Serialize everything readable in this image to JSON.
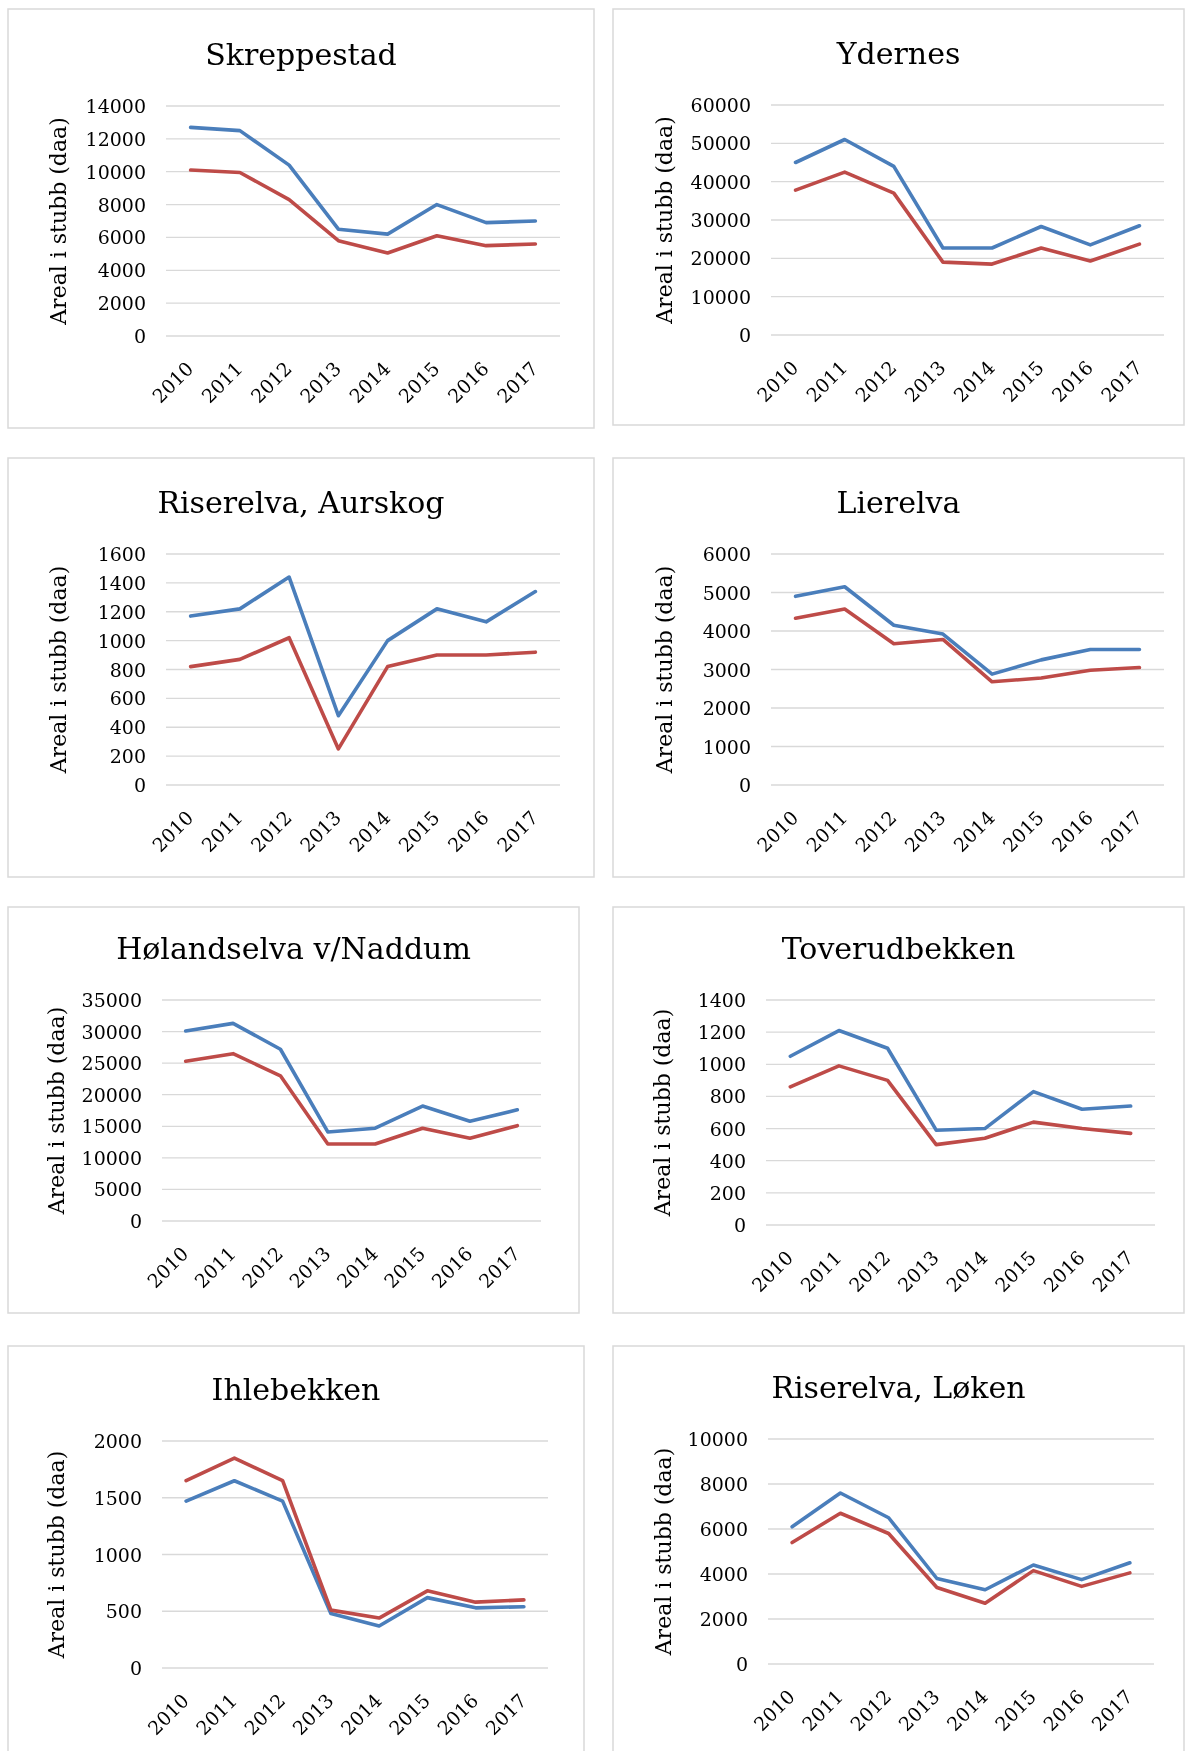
{
  "chart_data": [
    {
      "type": "line",
      "title": "Skreppestad",
      "ylabel": "Areal i stubb (daa)",
      "categories": [
        "2010",
        "2011",
        "2012",
        "2013",
        "2014",
        "2015",
        "2016",
        "2017"
      ],
      "series": [
        {
          "color": "#4a7ebb",
          "values": [
            12700,
            12500,
            10400,
            6500,
            6200,
            8000,
            6900,
            7000
          ]
        },
        {
          "color": "#be4b48",
          "values": [
            10100,
            9950,
            8300,
            5800,
            5050,
            6100,
            5500,
            5600
          ]
        }
      ],
      "ylim": [
        0,
        14000
      ],
      "yticks": [
        0,
        2000,
        4000,
        6000,
        8000,
        10000,
        12000,
        14000
      ],
      "grid": "y"
    },
    {
      "type": "line",
      "title": "Ydernes",
      "ylabel": "Areal i stubb (daa)",
      "categories": [
        "2010",
        "2011",
        "2012",
        "2013",
        "2014",
        "2015",
        "2016",
        "2017"
      ],
      "series": [
        {
          "color": "#4a7ebb",
          "values": [
            45000,
            51000,
            44000,
            22700,
            22700,
            28300,
            23500,
            28500
          ]
        },
        {
          "color": "#be4b48",
          "values": [
            37800,
            42500,
            37000,
            19000,
            18500,
            22700,
            19300,
            23700
          ]
        }
      ],
      "ylim": [
        0,
        60000
      ],
      "yticks": [
        0,
        10000,
        20000,
        30000,
        40000,
        50000,
        60000
      ],
      "grid": "y"
    },
    {
      "type": "line",
      "title": "Riserelva, Aurskog",
      "ylabel": "Areal i stubb (daa)",
      "categories": [
        "2010",
        "2011",
        "2012",
        "2013",
        "2014",
        "2015",
        "2016",
        "2017"
      ],
      "series": [
        {
          "color": "#4a7ebb",
          "values": [
            1170,
            1220,
            1440,
            480,
            1000,
            1220,
            1130,
            1340
          ]
        },
        {
          "color": "#be4b48",
          "values": [
            820,
            870,
            1020,
            250,
            820,
            900,
            900,
            920
          ]
        }
      ],
      "ylim": [
        0,
        1600
      ],
      "yticks": [
        0,
        200,
        400,
        600,
        800,
        1000,
        1200,
        1400,
        1600
      ],
      "grid": "y"
    },
    {
      "type": "line",
      "title": "Lierelva",
      "ylabel": "Areal i stubb (daa)",
      "categories": [
        "2010",
        "2011",
        "2012",
        "2013",
        "2014",
        "2015",
        "2016",
        "2017"
      ],
      "series": [
        {
          "color": "#4a7ebb",
          "values": [
            4900,
            5150,
            4150,
            3920,
            2880,
            3250,
            3520,
            3520
          ]
        },
        {
          "color": "#be4b48",
          "values": [
            4330,
            4570,
            3670,
            3780,
            2680,
            2780,
            2980,
            3050
          ]
        }
      ],
      "ylim": [
        0,
        6000
      ],
      "yticks": [
        0,
        1000,
        2000,
        3000,
        4000,
        5000,
        6000
      ],
      "grid": "y"
    },
    {
      "type": "line",
      "title": "Hølandselva v/Naddum",
      "ylabel": "Areal i stubb (daa)",
      "categories": [
        "2010",
        "2011",
        "2012",
        "2013",
        "2014",
        "2015",
        "2016",
        "2017"
      ],
      "series": [
        {
          "color": "#4a7ebb",
          "values": [
            30100,
            31300,
            27200,
            14100,
            14700,
            18200,
            15800,
            17600
          ]
        },
        {
          "color": "#be4b48",
          "values": [
            25300,
            26500,
            23000,
            12200,
            12200,
            14700,
            13100,
            15100
          ]
        }
      ],
      "ylim": [
        0,
        35000
      ],
      "yticks": [
        0,
        5000,
        10000,
        15000,
        20000,
        25000,
        30000,
        35000
      ],
      "grid": "y"
    },
    {
      "type": "line",
      "title": "Toverudbekken",
      "ylabel": "Areal i stubb (daa)",
      "categories": [
        "2010",
        "2011",
        "2012",
        "2013",
        "2014",
        "2015",
        "2016",
        "2017"
      ],
      "series": [
        {
          "color": "#4a7ebb",
          "values": [
            1050,
            1210,
            1100,
            590,
            600,
            830,
            720,
            740
          ]
        },
        {
          "color": "#be4b48",
          "values": [
            860,
            990,
            900,
            500,
            540,
            640,
            600,
            570
          ]
        }
      ],
      "ylim": [
        0,
        1400
      ],
      "yticks": [
        0,
        200,
        400,
        600,
        800,
        1000,
        1200,
        1400
      ],
      "grid": "y"
    },
    {
      "type": "line",
      "title": "Ihlebekken",
      "ylabel": "Areal i stubb (daa)",
      "categories": [
        "2010",
        "2011",
        "2012",
        "2013",
        "2014",
        "2015",
        "2016",
        "2017"
      ],
      "series": [
        {
          "color": "#4a7ebb",
          "values": [
            1470,
            1650,
            1470,
            480,
            370,
            620,
            530,
            540
          ]
        },
        {
          "color": "#be4b48",
          "values": [
            1650,
            1850,
            1650,
            510,
            440,
            680,
            580,
            600
          ]
        }
      ],
      "ylim": [
        0,
        2000
      ],
      "yticks": [
        0,
        500,
        1000,
        1500,
        2000
      ],
      "grid": "y"
    },
    {
      "type": "line",
      "title": "Riserelva, Løken",
      "ylabel": "Areal i stubb (daa)",
      "categories": [
        "2010",
        "2011",
        "2012",
        "2013",
        "2014",
        "2015",
        "2016",
        "2017"
      ],
      "series": [
        {
          "color": "#4a7ebb",
          "values": [
            6100,
            7600,
            6500,
            3800,
            3300,
            4400,
            3750,
            4500
          ]
        },
        {
          "color": "#be4b48",
          "values": [
            5400,
            6700,
            5800,
            3400,
            2700,
            4150,
            3450,
            4050
          ]
        }
      ],
      "ylim": [
        0,
        10000
      ],
      "yticks": [
        0,
        2000,
        4000,
        6000,
        8000,
        10000
      ],
      "grid": "y"
    }
  ]
}
